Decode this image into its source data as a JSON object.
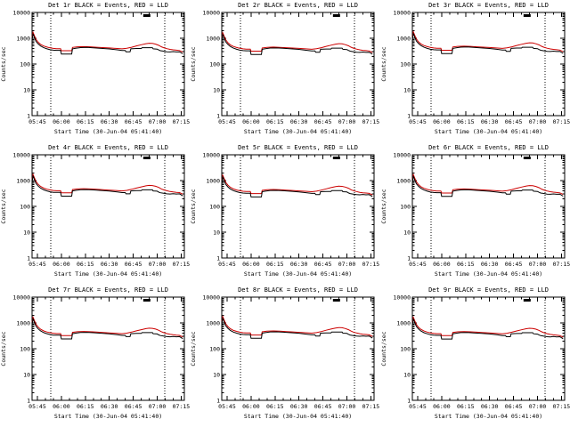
{
  "page": {
    "background": "#ffffff",
    "description": "3x3 grid of detector count-rate light curves"
  },
  "chart_data": {
    "type": "line",
    "layout": {
      "rows": 3,
      "cols": 3,
      "legend_position": "none",
      "grid_lines": false
    },
    "title_prefix": "Det",
    "title_suffix": "BLACK = Events, RED = LLD",
    "xlabel": "Start Time (30-Jun-04 05:41:40)",
    "ylabel": "Counts/sec",
    "y_scale": "log",
    "ylim": [
      1,
      10000
    ],
    "y_ticks": [
      1,
      10,
      100,
      1000,
      10000
    ],
    "x_ticks": [
      "05:45",
      "06:00",
      "06:15",
      "06:30",
      "06:45",
      "07:00",
      "07:15"
    ],
    "time_base": "minutes after 05:40 UT",
    "x_tick_minutes": [
      5,
      20,
      35,
      50,
      65,
      80,
      95
    ],
    "x_domain_minutes": [
      1.67,
      97
    ],
    "x_minor_step_minutes": 5,
    "dotted_line_minutes": [
      13.5,
      84.7
    ],
    "top_marker": {
      "x_frac": 0.73
    },
    "colors": {
      "events": "#000000",
      "lld": "#cc0000"
    },
    "series": {
      "events": {
        "name": "Events",
        "x": [
          1.7,
          2.3,
          3.2,
          4.2,
          5.5,
          7,
          9,
          11,
          13,
          15,
          17,
          19,
          19.5,
          20,
          26.5,
          27,
          29,
          32,
          36,
          40,
          45,
          50,
          55,
          58,
          60,
          60.5,
          63,
          63.5,
          67,
          70,
          70.5,
          74,
          77,
          77.5,
          80,
          81,
          82,
          84,
          86,
          88,
          90,
          92,
          94,
          96
        ],
        "y": [
          900,
          1500,
          1050,
          750,
          600,
          500,
          430,
          390,
          360,
          345,
          340,
          340,
          340,
          245,
          245,
          390,
          410,
          435,
          440,
          425,
          405,
          385,
          355,
          335,
          335,
          300,
          300,
          390,
          400,
          400,
          430,
          430,
          430,
          390,
          380,
          350,
          330,
          315,
          300,
          295,
          305,
          295,
          300,
          250
        ]
      },
      "lld": {
        "name": "LLD",
        "x": [
          1.7,
          2.3,
          3.2,
          4.2,
          5.5,
          7,
          9,
          11,
          13,
          15,
          17,
          19,
          19.5,
          20,
          26.5,
          27,
          30,
          34,
          38,
          42,
          46,
          50,
          54,
          58,
          61,
          64,
          67,
          70,
          73,
          75,
          77,
          79,
          81,
          82.5,
          84,
          86,
          88,
          90,
          92,
          94,
          96
        ],
        "y": [
          1100,
          1700,
          1250,
          900,
          700,
          580,
          500,
          455,
          425,
          405,
          395,
          395,
          395,
          330,
          330,
          440,
          465,
          475,
          465,
          450,
          435,
          420,
          405,
          390,
          410,
          450,
          505,
          560,
          615,
          640,
          630,
          590,
          530,
          470,
          430,
          395,
          370,
          355,
          345,
          335,
          290
        ]
      }
    },
    "panels_share_series": true,
    "panels": [
      {
        "det": "1r",
        "scale": 1.0
      },
      {
        "det": "2r",
        "scale": 0.96
      },
      {
        "det": "3r",
        "scale": 1.04
      },
      {
        "det": "4r",
        "scale": 1.02
      },
      {
        "det": "5r",
        "scale": 0.95
      },
      {
        "det": "6r",
        "scale": 1.0
      },
      {
        "det": "7r",
        "scale": 0.98
      },
      {
        "det": "8r",
        "scale": 1.03
      },
      {
        "det": "9r",
        "scale": 0.97
      }
    ]
  }
}
